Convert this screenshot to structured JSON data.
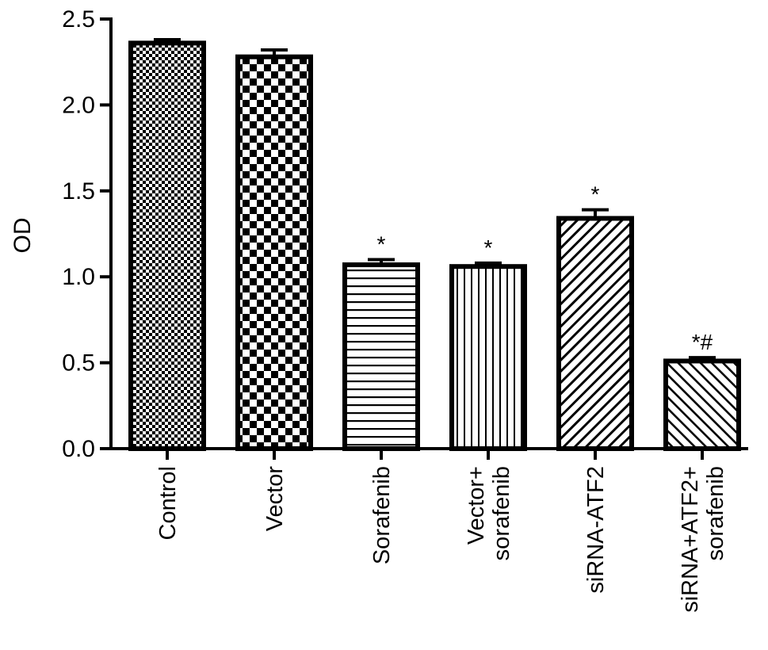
{
  "chart_data": {
    "type": "bar",
    "ylabel": "OD",
    "xlabel": "",
    "ylim": [
      0,
      2.5
    ],
    "yticks": [
      "0.0",
      "0.5",
      "1.0",
      "1.5",
      "2.0",
      "2.5"
    ],
    "grid": false,
    "legend": "none",
    "categories": [
      [
        "Control"
      ],
      [
        "Vector"
      ],
      [
        "Sorafenib"
      ],
      [
        "Vector+",
        "sorafenib"
      ],
      [
        "siRNA-ATF2"
      ],
      [
        "siRNA+ATF2+",
        "sorafenib"
      ]
    ],
    "values": [
      2.36,
      2.28,
      1.07,
      1.06,
      1.34,
      0.51
    ],
    "errors": [
      0.02,
      0.04,
      0.03,
      0.02,
      0.05,
      0.02
    ],
    "significance": [
      "",
      "",
      "*",
      "*",
      "*",
      "*#"
    ],
    "patterns": [
      "fine-checker",
      "coarse-checker",
      "horizontal-lines",
      "vertical-lines",
      "diagonal-lines",
      "diagonal-lines-reverse"
    ],
    "colors": {
      "bar_edge": "#000000",
      "fill_pattern": "#000000",
      "background": "#ffffff"
    }
  }
}
